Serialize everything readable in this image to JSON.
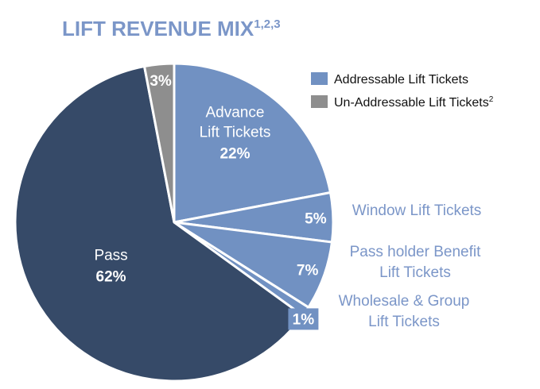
{
  "chart_data": {
    "type": "pie",
    "title": "LIFT REVENUE MIX",
    "title_superscript": "1,2,3",
    "colors": {
      "title": "#7b96c8",
      "addressable": "#7191c2",
      "un_addressable": "#8e8e8e",
      "pass": "#364a68",
      "outside_label": "#7b96c8",
      "slice_border": "#ffffff"
    },
    "legend": {
      "placement": "top-right",
      "items": [
        {
          "label": "Addressable Lift Tickets",
          "superscript": "",
          "color": "#7191c2"
        },
        {
          "label": "Un-Addressable Lift Tickets",
          "superscript": "2",
          "color": "#8e8e8e"
        }
      ]
    },
    "slices": [
      {
        "name": "Advance Lift Tickets",
        "label_lines": [
          "Advance",
          "Lift Tickets"
        ],
        "value": 22,
        "pct_label": "22%",
        "group": "addressable",
        "color": "#7191c2"
      },
      {
        "name": "Window Lift Tickets",
        "label_lines": [
          "Window Lift Tickets"
        ],
        "value": 5,
        "pct_label": "5%",
        "group": "addressable",
        "color": "#7191c2"
      },
      {
        "name": "Pass holder Benefit Lift Tickets",
        "label_lines": [
          "Pass holder Benefit",
          "Lift Tickets"
        ],
        "value": 7,
        "pct_label": "7%",
        "group": "addressable",
        "color": "#7191c2"
      },
      {
        "name": "Wholesale & Group Lift Tickets",
        "label_lines": [
          "Wholesale & Group",
          "Lift Tickets"
        ],
        "value": 1,
        "pct_label": "1%",
        "group": "addressable",
        "color": "#7191c2"
      },
      {
        "name": "Pass",
        "label_lines": [
          "Pass"
        ],
        "value": 62,
        "pct_label": "62%",
        "group": "un_addressable",
        "color": "#364a68"
      },
      {
        "name": "Un-Addressable Lift Tickets",
        "label_lines": [],
        "value": 3,
        "pct_label": "3%",
        "group": "un_addressable",
        "color": "#8e8e8e"
      }
    ]
  }
}
